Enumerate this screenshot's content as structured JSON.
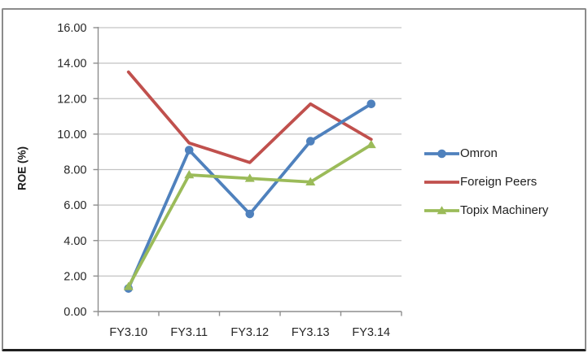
{
  "chart_data": {
    "type": "line",
    "title": "",
    "xlabel": "",
    "ylabel": "ROE (%)",
    "categories": [
      "FY3.10",
      "FY3.11",
      "FY3.12",
      "FY3.13",
      "FY3.14"
    ],
    "series": [
      {
        "name": "Omron",
        "color": "#4F81BD",
        "marker": "circle",
        "values": [
          1.3,
          9.1,
          5.5,
          9.6,
          11.7
        ]
      },
      {
        "name": "Foreign Peers",
        "color": "#C0504D",
        "marker": "none",
        "values": [
          13.5,
          9.5,
          8.4,
          11.7,
          9.7
        ]
      },
      {
        "name": "Topix Machinery",
        "color": "#9BBB59",
        "marker": "triangle",
        "values": [
          1.4,
          7.7,
          7.5,
          7.3,
          9.4
        ]
      }
    ],
    "ylim": [
      0,
      16
    ],
    "ytick_labels": [
      "0.00",
      "2.00",
      "4.00",
      "6.00",
      "8.00",
      "10.00",
      "12.00",
      "14.00",
      "16.00"
    ],
    "grid": "horizontal",
    "legend_position": "right",
    "draw_order": [
      1,
      0,
      2
    ]
  },
  "colors": {
    "gridline": "#c3c3c3",
    "axis": "#8e8e8e",
    "tick_text": "#262626",
    "frame_side": "#8b8b8b",
    "frame_bottom": "#1f1f1f",
    "background": "#ffffff"
  }
}
